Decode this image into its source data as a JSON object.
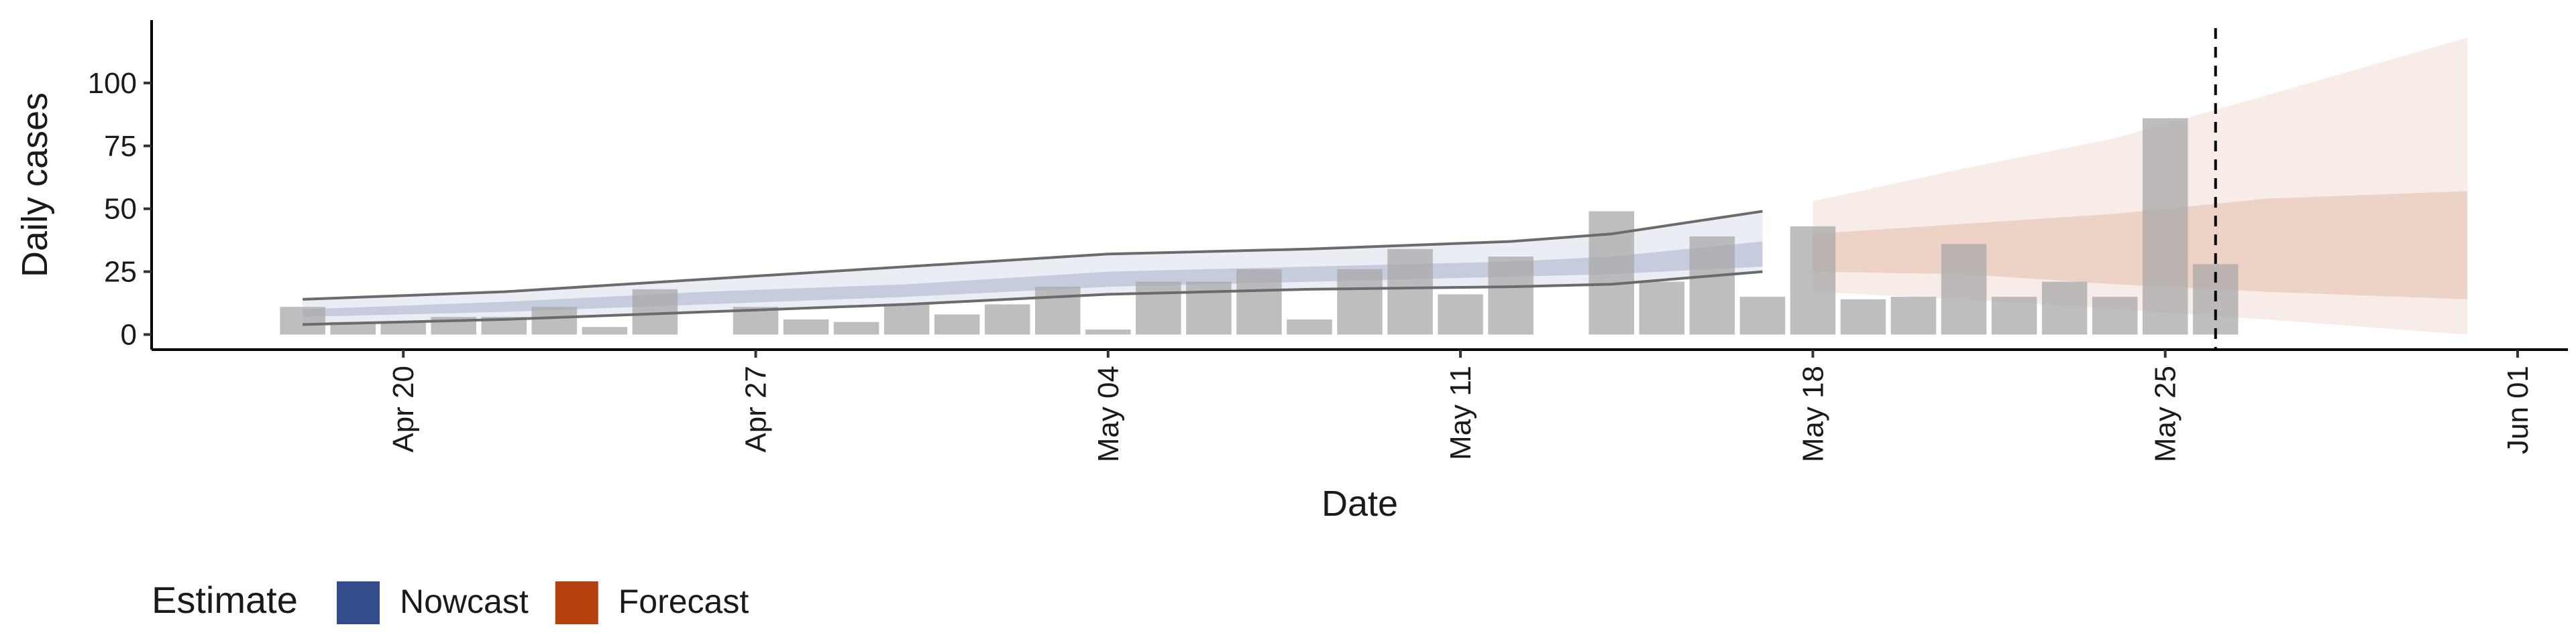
{
  "chart_data": {
    "type": "bar",
    "x_label": "Date",
    "y_label": "Daily cases",
    "legend_title": "Estimate",
    "categories": [
      "Apr 18",
      "Apr 19",
      "Apr 20",
      "Apr 21",
      "Apr 22",
      "Apr 23",
      "Apr 24",
      "Apr 25",
      "Apr 26",
      "Apr 27",
      "Apr 28",
      "Apr 29",
      "Apr 30",
      "May 01",
      "May 02",
      "May 03",
      "May 04",
      "May 05",
      "May 06",
      "May 07",
      "May 08",
      "May 09",
      "May 10",
      "May 11",
      "May 12",
      "May 13",
      "May 14",
      "May 15",
      "May 16",
      "May 17",
      "May 18",
      "May 19",
      "May 20",
      "May 21",
      "May 22",
      "May 23",
      "May 24",
      "May 25",
      "May 26"
    ],
    "values": [
      11,
      5,
      5,
      7,
      7,
      11,
      3,
      18,
      0,
      11,
      6,
      5,
      12,
      8,
      12,
      19,
      2,
      21,
      21,
      26,
      6,
      26,
      34,
      16,
      31,
      0,
      49,
      21,
      39,
      15,
      43,
      14,
      15,
      36,
      15,
      21,
      15,
      86,
      28
    ],
    "color": "#a8a8a8",
    "series": [
      {
        "name": "Nowcast",
        "color": "#344b8c",
        "x": [
          "Apr 18",
          "Apr 22",
          "Apr 26",
          "Apr 30",
          "May 04",
          "May 08",
          "May 12",
          "May 14",
          "May 17"
        ],
        "lower_90": [
          4,
          6,
          9,
          12,
          16,
          18,
          19,
          20,
          25
        ],
        "upper_90": [
          14,
          17,
          22,
          27,
          32,
          34,
          37,
          40,
          49
        ],
        "lower_50": [
          7,
          9,
          12,
          15,
          19,
          21,
          23,
          24,
          27
        ],
        "upper_50": [
          10,
          13,
          17,
          20,
          25,
          27,
          29,
          31,
          37
        ]
      },
      {
        "name": "Forecast",
        "color": "#b5400f",
        "x": [
          "May 18",
          "May 21",
          "May 24",
          "May 27",
          "May 31"
        ],
        "lower_90": [
          17,
          14,
          10,
          6,
          0
        ],
        "upper_90": [
          53,
          66,
          78,
          95,
          118
        ],
        "lower_50": [
          25,
          24,
          20,
          17,
          14
        ],
        "upper_50": [
          40,
          44,
          48,
          54,
          57
        ]
      }
    ],
    "vline_x": "May 26",
    "xlim": [
      "Apr 15",
      "Jun 02"
    ],
    "xticks": [
      "Apr 20",
      "Apr 27",
      "May 04",
      "May 11",
      "May 18",
      "May 25",
      "Jun 01"
    ],
    "ylim": [
      -6,
      125
    ],
    "yticks": [
      0,
      25,
      50,
      75,
      100
    ]
  }
}
